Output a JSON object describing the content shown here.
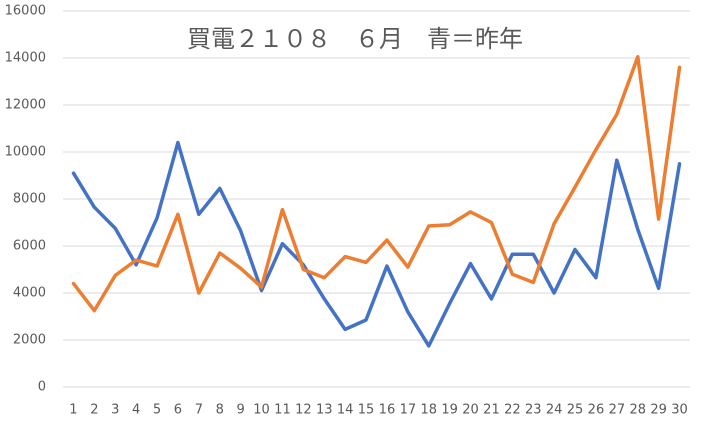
{
  "chart_data": {
    "type": "line",
    "title": "買電２１０８　６月　青＝昨年",
    "categories": [
      "1",
      "2",
      "3",
      "4",
      "5",
      "6",
      "7",
      "8",
      "9",
      "10",
      "11",
      "12",
      "13",
      "14",
      "15",
      "16",
      "17",
      "18",
      "19",
      "20",
      "21",
      "22",
      "23",
      "24",
      "25",
      "26",
      "27",
      "28",
      "29",
      "30"
    ],
    "series": [
      {
        "color": "#4472c4",
        "values": [
          9100,
          7650,
          6750,
          5200,
          7200,
          10400,
          7350,
          8450,
          6650,
          4100,
          6100,
          5200,
          3750,
          2450,
          2850,
          5150,
          3200,
          1750,
          3550,
          5250,
          3750,
          5650,
          5650,
          4000,
          5850,
          4650,
          9650,
          6700,
          4200,
          9500
        ]
      },
      {
        "color": "#ed7d31",
        "values": [
          4400,
          3250,
          4750,
          5400,
          5150,
          7350,
          4000,
          5700,
          5050,
          4250,
          7550,
          5000,
          4650,
          5550,
          5300,
          6250,
          5100,
          6850,
          6900,
          7450,
          7000,
          4800,
          4450,
          6950,
          8500,
          10100,
          11600,
          14050,
          7150,
          13600
        ]
      }
    ],
    "ylim": [
      0,
      16000
    ],
    "yticks": [
      0,
      2000,
      4000,
      6000,
      8000,
      10000,
      12000,
      14000,
      16000
    ],
    "grid": true
  }
}
